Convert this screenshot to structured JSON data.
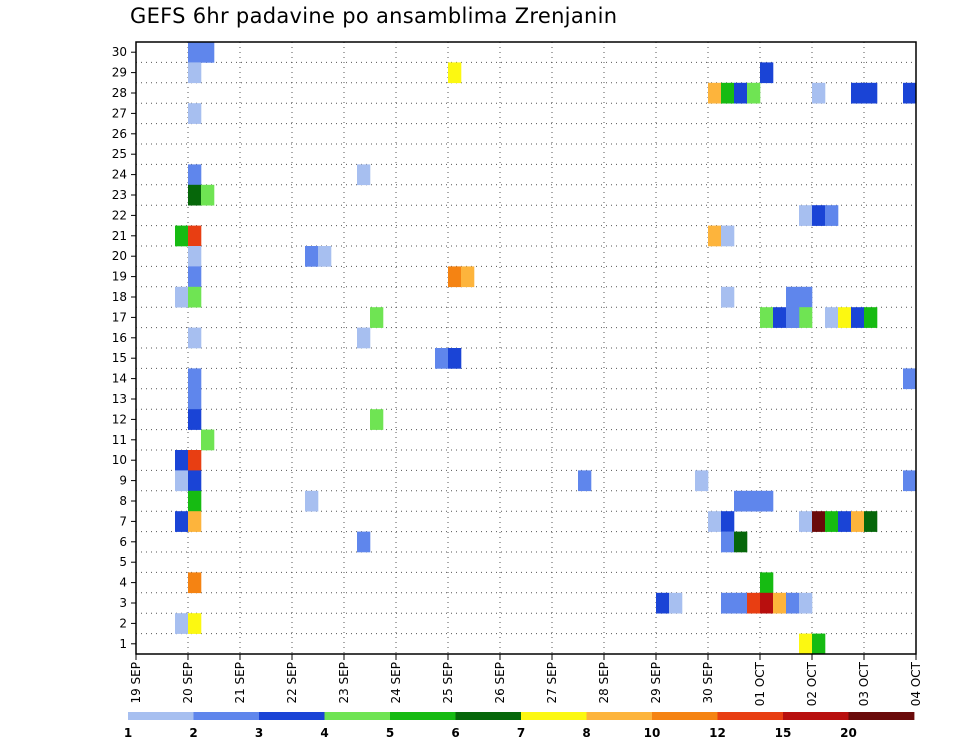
{
  "chart_data": {
    "type": "heatmap",
    "title": "GEFS 6hr padavine po ansamblima Zrenjanin",
    "y_members": [
      "1",
      "2",
      "3",
      "4",
      "5",
      "6",
      "7",
      "8",
      "9",
      "10",
      "11",
      "12",
      "13",
      "14",
      "15",
      "16",
      "17",
      "18",
      "19",
      "20",
      "21",
      "22",
      "23",
      "24",
      "25",
      "26",
      "27",
      "28",
      "29",
      "30"
    ],
    "x_ticks": [
      "19 SEP",
      "20 SEP",
      "21 SEP",
      "22 SEP",
      "23 SEP",
      "24 SEP",
      "25 SEP",
      "26 SEP",
      "27 SEP",
      "28 SEP",
      "29 SEP",
      "30 SEP",
      "01 OCT",
      "02 OCT",
      "03 OCT",
      "04 OCT"
    ],
    "x_unit": "6h steps from 19 SEP 00Z",
    "grid": true,
    "legend_placement": "bottom",
    "legend": {
      "labels": [
        "1",
        "2",
        "3",
        "4",
        "5",
        "6",
        "7",
        "8",
        "10",
        "12",
        "15",
        "20"
      ],
      "colors": [
        "#a7bff0",
        "#5f86ec",
        "#1a44d6",
        "#6fe453",
        "#16bb12",
        "#06670a",
        "#fcf811",
        "#fdb43c",
        "#f58312",
        "#e83e12",
        "#b80f0e",
        "#6a0a0a"
      ]
    },
    "cells": [
      {
        "m": 30,
        "t": 4,
        "c": 1
      },
      {
        "m": 30,
        "t": 5,
        "c": 1
      },
      {
        "m": 29,
        "t": 4,
        "c": 0
      },
      {
        "m": 29,
        "t": 24,
        "c": 6
      },
      {
        "m": 29,
        "t": 48,
        "c": 2
      },
      {
        "m": 28,
        "t": 44,
        "c": 7
      },
      {
        "m": 28,
        "t": 45,
        "c": 4
      },
      {
        "m": 28,
        "t": 46,
        "c": 2
      },
      {
        "m": 28,
        "t": 47,
        "c": 3
      },
      {
        "m": 28,
        "t": 52,
        "c": 0
      },
      {
        "m": 28,
        "t": 55,
        "c": 2
      },
      {
        "m": 28,
        "t": 56,
        "c": 2
      },
      {
        "m": 28,
        "t": 59,
        "c": 2
      },
      {
        "m": 27,
        "t": 4,
        "c": 0
      },
      {
        "m": 24,
        "t": 4,
        "c": 1
      },
      {
        "m": 24,
        "t": 17,
        "c": 0
      },
      {
        "m": 23,
        "t": 4,
        "c": 5
      },
      {
        "m": 23,
        "t": 5,
        "c": 3
      },
      {
        "m": 22,
        "t": 51,
        "c": 0
      },
      {
        "m": 22,
        "t": 52,
        "c": 2
      },
      {
        "m": 22,
        "t": 53,
        "c": 1
      },
      {
        "m": 21,
        "t": 3,
        "c": 4
      },
      {
        "m": 21,
        "t": 4,
        "c": 9
      },
      {
        "m": 21,
        "t": 44,
        "c": 7
      },
      {
        "m": 21,
        "t": 45,
        "c": 0
      },
      {
        "m": 20,
        "t": 4,
        "c": 0
      },
      {
        "m": 20,
        "t": 13,
        "c": 1
      },
      {
        "m": 20,
        "t": 14,
        "c": 0
      },
      {
        "m": 19,
        "t": 4,
        "c": 1
      },
      {
        "m": 19,
        "t": 24,
        "c": 8
      },
      {
        "m": 19,
        "t": 25,
        "c": 7
      },
      {
        "m": 18,
        "t": 3,
        "c": 0
      },
      {
        "m": 18,
        "t": 4,
        "c": 3
      },
      {
        "m": 18,
        "t": 45,
        "c": 0
      },
      {
        "m": 18,
        "t": 50,
        "c": 1
      },
      {
        "m": 18,
        "t": 51,
        "c": 1
      },
      {
        "m": 17,
        "t": 18,
        "c": 3
      },
      {
        "m": 17,
        "t": 48,
        "c": 3
      },
      {
        "m": 17,
        "t": 49,
        "c": 2
      },
      {
        "m": 17,
        "t": 50,
        "c": 1
      },
      {
        "m": 17,
        "t": 51,
        "c": 3
      },
      {
        "m": 17,
        "t": 53,
        "c": 0
      },
      {
        "m": 17,
        "t": 54,
        "c": 6
      },
      {
        "m": 17,
        "t": 55,
        "c": 2
      },
      {
        "m": 17,
        "t": 56,
        "c": 4
      },
      {
        "m": 16,
        "t": 4,
        "c": 0
      },
      {
        "m": 16,
        "t": 17,
        "c": 0
      },
      {
        "m": 17,
        "t": 50,
        "c": 1
      },
      {
        "m": 15,
        "t": 23,
        "c": 1
      },
      {
        "m": 15,
        "t": 24,
        "c": 2
      },
      {
        "m": 14,
        "t": 4,
        "c": 1
      },
      {
        "m": 14,
        "t": 59,
        "c": 1
      },
      {
        "m": 13,
        "t": 4,
        "c": 1
      },
      {
        "m": 12,
        "t": 4,
        "c": 2
      },
      {
        "m": 12,
        "t": 18,
        "c": 3
      },
      {
        "m": 11,
        "t": 5,
        "c": 3
      },
      {
        "m": 10,
        "t": 3,
        "c": 2
      },
      {
        "m": 10,
        "t": 4,
        "c": 9
      },
      {
        "m": 9,
        "t": 3,
        "c": 0
      },
      {
        "m": 9,
        "t": 4,
        "c": 2
      },
      {
        "m": 9,
        "t": 34,
        "c": 1
      },
      {
        "m": 9,
        "t": 43,
        "c": 0
      },
      {
        "m": 9,
        "t": 59,
        "c": 1
      },
      {
        "m": 8,
        "t": 4,
        "c": 4
      },
      {
        "m": 8,
        "t": 13,
        "c": 0
      },
      {
        "m": 8,
        "t": 46,
        "c": 1
      },
      {
        "m": 8,
        "t": 47,
        "c": 1
      },
      {
        "m": 8,
        "t": 48,
        "c": 1
      },
      {
        "m": 7,
        "t": 3,
        "c": 2
      },
      {
        "m": 7,
        "t": 4,
        "c": 7
      },
      {
        "m": 7,
        "t": 44,
        "c": 0
      },
      {
        "m": 7,
        "t": 45,
        "c": 2
      },
      {
        "m": 7,
        "t": 51,
        "c": 0
      },
      {
        "m": 7,
        "t": 52,
        "c": 11
      },
      {
        "m": 7,
        "t": 53,
        "c": 4
      },
      {
        "m": 7,
        "t": 54,
        "c": 2
      },
      {
        "m": 7,
        "t": 55,
        "c": 7
      },
      {
        "m": 7,
        "t": 56,
        "c": 5
      },
      {
        "m": 6,
        "t": 17,
        "c": 1
      },
      {
        "m": 6,
        "t": 45,
        "c": 1
      },
      {
        "m": 6,
        "t": 46,
        "c": 5
      },
      {
        "m": 4,
        "t": 4,
        "c": 8
      },
      {
        "m": 4,
        "t": 48,
        "c": 4
      },
      {
        "m": 3,
        "t": 40,
        "c": 2
      },
      {
        "m": 3,
        "t": 41,
        "c": 0
      },
      {
        "m": 3,
        "t": 45,
        "c": 1
      },
      {
        "m": 3,
        "t": 46,
        "c": 1
      },
      {
        "m": 3,
        "t": 47,
        "c": 9
      },
      {
        "m": 3,
        "t": 48,
        "c": 10
      },
      {
        "m": 3,
        "t": 49,
        "c": 7
      },
      {
        "m": 3,
        "t": 50,
        "c": 1
      },
      {
        "m": 3,
        "t": 51,
        "c": 0
      },
      {
        "m": 2,
        "t": 3,
        "c": 0
      },
      {
        "m": 2,
        "t": 4,
        "c": 6
      },
      {
        "m": 1,
        "t": 51,
        "c": 6
      },
      {
        "m": 1,
        "t": 52,
        "c": 4
      }
    ]
  }
}
